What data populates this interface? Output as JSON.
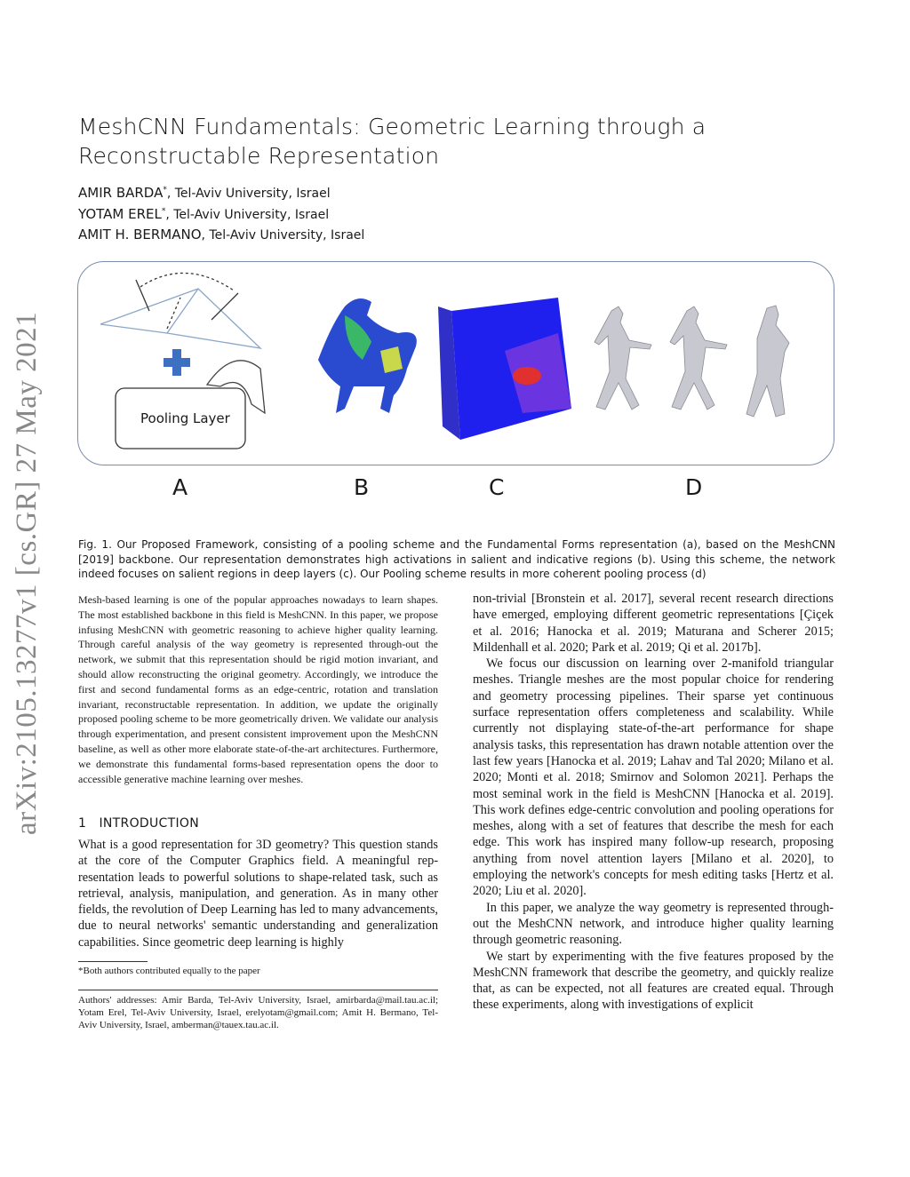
{
  "title": "MeshCNN Fundamentals: Geometric Learning through a Reconstructable Representation",
  "authors": [
    {
      "name": "AMIR BARDA",
      "mark": "*",
      "affiliation": ", Tel-Aviv University, Israel"
    },
    {
      "name": "YOTAM EREL",
      "mark": "*",
      "affiliation": ", Tel-Aviv University, Israel"
    },
    {
      "name": "AMIT H. BERMANO",
      "mark": "",
      "affiliation": ", Tel-Aviv University, Israel"
    }
  ],
  "arxiv_stamp": "arXiv:2105.13277v1  [cs.GR]  27 May 2021",
  "figure": {
    "pooling_layer_label": "Pooling Layer",
    "panel_labels": [
      "A",
      "B",
      "C",
      "D"
    ]
  },
  "caption": "Fig. 1.  Our Proposed Framework, consisting of a pooling scheme and the Fundamental Forms representation (a), based on the MeshCNN [2019] backbone. Our representation demonstrates high activations in salient and indicative regions (b). Using this scheme, the network indeed focuses on salient regions in deep layers (c). Our Pooling scheme results in more coherent pooling process (d)",
  "abstract": "Mesh-based learning is one of the popular approaches nowadays to learn shapes. The most established backbone in this field is MeshCNN. In this paper, we propose infusing MeshCNN with geometric reasoning to achieve higher quality learning. Through careful analysis of the way geometry is rep­resented through-out the network, we submit that this representation should be rigid motion invariant, and should allow reconstructing the original ge­ometry. Accordingly, we introduce the first and second fundamental forms as an edge-centric, rotation and translation invariant, reconstructable repre­sentation. In addition, we update the originally proposed pooling scheme to be more geometrically driven. We validate our analysis through experimen­tation, and present consistent improvement upon the MeshCNN baseline, as well as other more elaborate state-of-the-art architectures. Furthermore, we demonstrate this fundamental forms-based representation opens the door to accessible generative machine learning over meshes.",
  "section": {
    "number": "1",
    "title": "INTRODUCTION"
  },
  "intro_left": "What is a good representation for 3D geometry? This question stands at the core of the Computer Graphics field. A meaningful rep­resentation leads to powerful solutions to shape-related task, such as retrieval, analysis, manipulation, and generation. As in many other fields, the revolution of Deep Learning has led to many ad­vancements, due to neural networks' semantic understanding and generalization capabilities. Since geometric deep learning is highly",
  "intro_right": [
    "non-trivial [Bronstein et al. 2017], several recent research direc­tions have emerged, employing different geometric representations [Çiçek et al. 2016; Hanocka et al. 2019; Maturana and Scherer 2015; Mildenhall et al. 2020; Park et al. 2019; Qi et al. 2017b].",
    "We focus our discussion on learning over 2-manifold triangular meshes. Triangle meshes are the most popular choice for rendering and geometry processing pipelines. Their sparse yet continuous surface representation offers completeness and scalability. While currently not displaying state-of-the-art performance for shape analysis tasks, this representation has drawn notable attention over the last few years [Hanocka et al. 2019; Lahav and Tal 2020; Milano et al. 2020; Monti et al. 2018; Smirnov and Solomon 2021]. Perhaps the most seminal work in the field is MeshCNN [Hanocka et al. 2019]. This work defines edge-centric convolution and pooling operations for meshes, along with a set of features that describe the mesh for each edge. This work has inspired many follow-up research, proposing anything from novel attention layers [Milano et al. 2020], to employing the network's concepts for mesh editing tasks [Hertz et al. 2020; Liu et al. 2020].",
    "In this paper, we analyze the way geometry is represented through-out the MeshCNN network, and introduce higher quality learning through geometric reasoning.",
    "We start by experimenting with the five features proposed by the MeshCNN framework that describe the geometry, and quickly realize that, as can be expected, not all features are created equal. Through these experiments, along with investigations of explicit"
  ],
  "footnote": "*Both authors contributed equally to the paper",
  "addresses": "Authors' addresses: Amir Barda, Tel-Aviv University, Israel, amirbarda@mail.tau.ac.il; Yotam Erel, Tel-Aviv University, Israel, erelyotam@gmail.com; Amit H. Bermano, Tel-Aviv University, Israel, amberman@tauex.tau.ac.il."
}
